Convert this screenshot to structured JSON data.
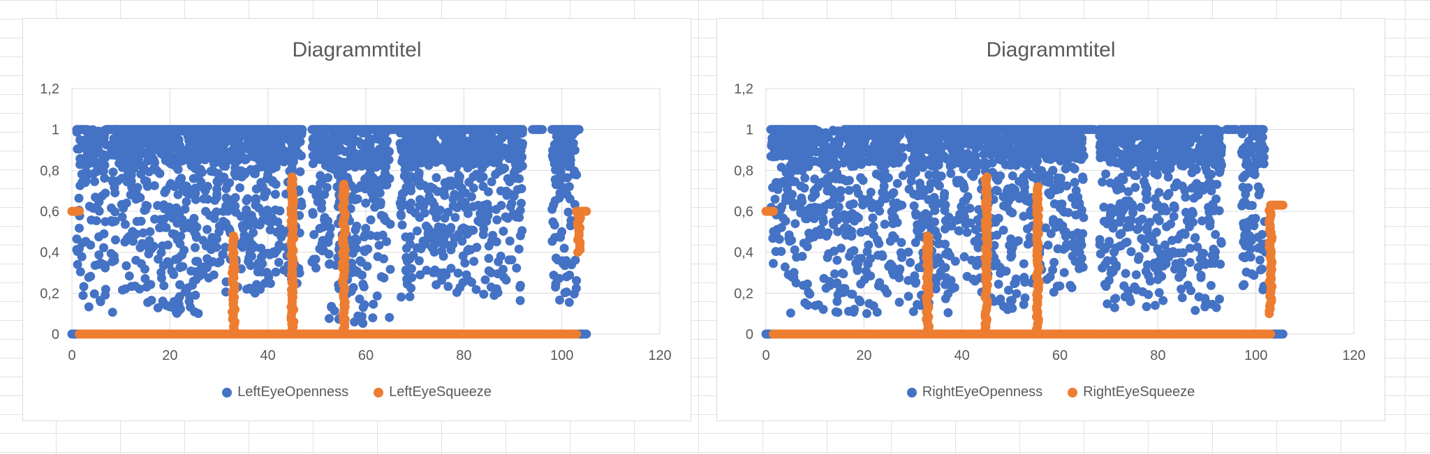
{
  "chart_data": [
    {
      "type": "scatter",
      "title": "Diagrammtitel",
      "xlim": [
        0,
        120
      ],
      "ylim": [
        0,
        1.2
      ],
      "xticks": [
        "0",
        "20",
        "40",
        "60",
        "80",
        "100",
        "120"
      ],
      "yticks": [
        "0",
        "0,2",
        "0,4",
        "0,6",
        "0,8",
        "1",
        "1,2"
      ],
      "grid": "horizontal and vertical",
      "legend": "bottom",
      "series": [
        {
          "name": "LeftEyeOpenness",
          "color": "#4472C4",
          "segments": [
            {
              "x0": 0,
              "x1": 1,
              "value": 0
            },
            {
              "x0": 1,
              "x1": 3,
              "value": 1
            },
            {
              "x0": 7,
              "x1": 9,
              "value": 1
            },
            {
              "x0": 9,
              "x1": 28,
              "value": 1
            },
            {
              "x0": 28,
              "x1": 47,
              "value": 1
            },
            {
              "x0": 49,
              "x1": 52,
              "value": 1
            },
            {
              "x0": 52,
              "x1": 65,
              "value": 1
            },
            {
              "x0": 65,
              "x1": 92,
              "value": 1
            },
            {
              "x0": 94,
              "x1": 96,
              "value": 1
            },
            {
              "x0": 98,
              "x1": 103.5,
              "value": 1
            },
            {
              "x0": 103.5,
              "x1": 105,
              "value": 0
            }
          ],
          "bands": [
            {
              "x0": 1,
              "x1": 3,
              "min": 0.15,
              "max": 1
            },
            {
              "x0": 3,
              "x1": 7,
              "min": 0.1,
              "max": 1
            },
            {
              "x0": 8,
              "x1": 28,
              "min": 0.1,
              "max": 1
            },
            {
              "x0": 28,
              "x1": 47,
              "min": 0.2,
              "max": 1
            },
            {
              "x0": 49,
              "x1": 52,
              "min": 0.3,
              "max": 1
            },
            {
              "x0": 52,
              "x1": 65,
              "min": 0.05,
              "max": 1
            },
            {
              "x0": 67,
              "x1": 92,
              "min": 0.15,
              "max": 1
            },
            {
              "x0": 98,
              "x1": 103,
              "min": 0.1,
              "max": 1
            }
          ]
        },
        {
          "name": "LeftEyeSqueeze",
          "color": "#ED7D31",
          "segments": [
            {
              "x0": 0,
              "x1": 1.5,
              "value": 0.6
            },
            {
              "x0": 1.5,
              "x1": 103,
              "value": 0
            },
            {
              "x0": 103,
              "x1": 105,
              "value": 0.6
            }
          ],
          "spikes": [
            {
              "x": 33,
              "min": 0,
              "max": 0.49
            },
            {
              "x": 45,
              "min": 0,
              "max": 0.77
            },
            {
              "x": 55.5,
              "min": 0,
              "max": 0.74
            },
            {
              "x": 103.5,
              "min": 0.4,
              "max": 0.6
            }
          ]
        }
      ]
    },
    {
      "type": "scatter",
      "title": "Diagrammtitel",
      "xlim": [
        0,
        120
      ],
      "ylim": [
        0,
        1.2
      ],
      "xticks": [
        "0",
        "20",
        "40",
        "60",
        "80",
        "100",
        "120"
      ],
      "yticks": [
        "0",
        "0,2",
        "0,4",
        "0,6",
        "0,8",
        "1",
        "1,2"
      ],
      "grid": "horizontal and vertical",
      "legend": "bottom",
      "series": [
        {
          "name": "RightEyeOpenness",
          "color": "#4472C4",
          "segments": [
            {
              "x0": 0,
              "x1": 1,
              "value": 0
            },
            {
              "x0": 1,
              "x1": 10,
              "value": 1
            },
            {
              "x0": 16,
              "x1": 67,
              "value": 1
            },
            {
              "x0": 68,
              "x1": 92,
              "value": 1
            },
            {
              "x0": 94,
              "x1": 96,
              "value": 1
            },
            {
              "x0": 97,
              "x1": 101.5,
              "value": 1
            },
            {
              "x0": 103.5,
              "x1": 105.5,
              "value": 0
            }
          ],
          "bands": [
            {
              "x0": 1,
              "x1": 4,
              "min": 0.3,
              "max": 1
            },
            {
              "x0": 4,
              "x1": 28,
              "min": 0.1,
              "max": 1
            },
            {
              "x0": 29,
              "x1": 48,
              "min": 0.1,
              "max": 1
            },
            {
              "x0": 48,
              "x1": 55,
              "min": 0.1,
              "max": 1
            },
            {
              "x0": 55,
              "x1": 65,
              "min": 0.2,
              "max": 1
            },
            {
              "x0": 68,
              "x1": 93,
              "min": 0.1,
              "max": 1
            },
            {
              "x0": 97,
              "x1": 102,
              "min": 0.2,
              "max": 1
            }
          ]
        },
        {
          "name": "RightEyeSqueeze",
          "color": "#ED7D31",
          "segments": [
            {
              "x0": 0,
              "x1": 1.5,
              "value": 0.6
            },
            {
              "x0": 1.5,
              "x1": 103,
              "value": 0
            },
            {
              "x0": 103,
              "x1": 105.5,
              "value": 0.63
            }
          ],
          "spikes": [
            {
              "x": 33,
              "min": 0,
              "max": 0.49
            },
            {
              "x": 45,
              "min": 0,
              "max": 0.77
            },
            {
              "x": 55.5,
              "min": 0,
              "max": 0.73
            },
            {
              "x": 103,
              "min": 0.1,
              "max": 0.63
            }
          ]
        }
      ]
    }
  ]
}
